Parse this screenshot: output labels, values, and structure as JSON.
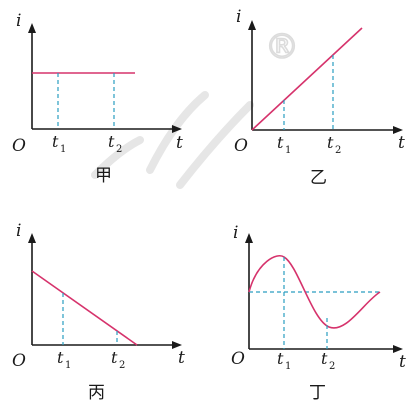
{
  "watermark": {
    "registered_mark": "®"
  },
  "panels": [
    {
      "id": "jia",
      "caption": "甲",
      "y_label": "i",
      "x_label": "t",
      "origin": "O",
      "tick1": "t",
      "tick1_sub": "1",
      "tick2": "t",
      "tick2_sub": "2"
    },
    {
      "id": "yi",
      "caption": "乙",
      "y_label": "i",
      "x_label": "t",
      "origin": "O",
      "tick1": "t",
      "tick1_sub": "1",
      "tick2": "t",
      "tick2_sub": "2"
    },
    {
      "id": "bing",
      "caption": "丙",
      "y_label": "i",
      "x_label": "t",
      "origin": "O",
      "tick1": "t",
      "tick1_sub": "1",
      "tick2": "t",
      "tick2_sub": "2"
    },
    {
      "id": "ding",
      "caption": "丁",
      "y_label": "i",
      "x_label": "t",
      "origin": "O",
      "tick1": "t",
      "tick1_sub": "1",
      "tick2": "t",
      "tick2_sub": "2"
    }
  ],
  "colors": {
    "curve": "#d6336c",
    "guide": "#2a9ec0",
    "axis": "#1a1a1a"
  }
}
